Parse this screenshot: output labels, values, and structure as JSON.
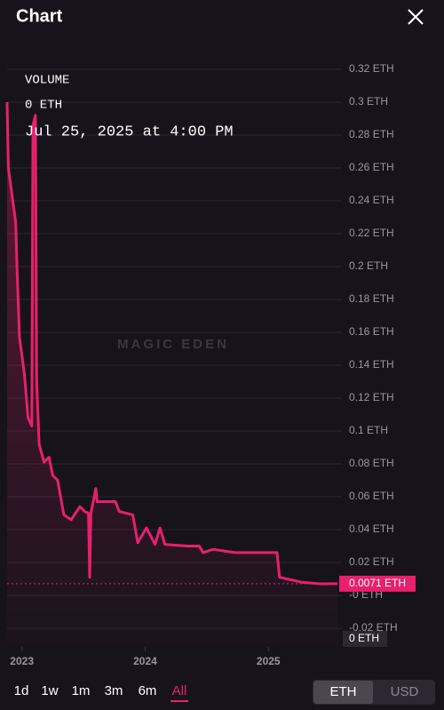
{
  "header": {
    "title": "Chart"
  },
  "info": {
    "label": "VOLUME",
    "value": "0 ETH",
    "date": "Jul 25, 2025 at 4:00 PM"
  },
  "watermark": "MAGIC EDEN",
  "chart_data": {
    "type": "line",
    "color": "#e8206e",
    "x": [
      2022.88,
      2022.89,
      2022.93,
      2022.95,
      2022.96,
      2022.98,
      2023.0,
      2023.02,
      2023.05,
      2023.08,
      2023.09,
      2023.11,
      2023.12,
      2023.14,
      2023.18,
      2023.22,
      2023.25,
      2023.29,
      2023.34,
      2023.4,
      2023.47,
      2023.51,
      2023.54,
      2023.55,
      2023.56,
      2023.6,
      2023.61,
      2023.76,
      2023.79,
      2023.9,
      2023.94,
      2024.01,
      2024.08,
      2024.12,
      2024.16,
      2024.34,
      2024.44,
      2024.47,
      2024.55,
      2024.73,
      2024.99,
      2025.07,
      2025.09,
      2025.27,
      2025.42,
      2025.56
    ],
    "values": [
      0.3,
      0.26,
      0.238,
      0.227,
      0.2,
      0.157,
      0.146,
      0.135,
      0.108,
      0.103,
      0.286,
      0.292,
      0.13,
      0.092,
      0.081,
      0.084,
      0.073,
      0.07,
      0.049,
      0.046,
      0.054,
      0.051,
      0.05,
      0.011,
      0.05,
      0.065,
      0.057,
      0.057,
      0.051,
      0.049,
      0.032,
      0.041,
      0.031,
      0.041,
      0.031,
      0.03,
      0.03,
      0.026,
      0.028,
      0.026,
      0.026,
      0.026,
      0.011,
      0.008,
      0.007,
      0.0071
    ],
    "xlim": [
      2022.88,
      2025.56
    ],
    "xticks": [
      2023,
      2024,
      2025
    ],
    "ylim": [
      -0.03,
      0.33
    ],
    "yticks": [
      {
        "value": 0.32,
        "label": "0.32 ETH"
      },
      {
        "value": 0.3,
        "label": "0.3 ETH"
      },
      {
        "value": 0.28,
        "label": "0.28 ETH"
      },
      {
        "value": 0.26,
        "label": "0.26 ETH"
      },
      {
        "value": 0.24,
        "label": "0.24 ETH"
      },
      {
        "value": 0.22,
        "label": "0.22 ETH"
      },
      {
        "value": 0.2,
        "label": "0.2 ETH"
      },
      {
        "value": 0.18,
        "label": "0.18 ETH"
      },
      {
        "value": 0.16,
        "label": "0.16 ETH"
      },
      {
        "value": 0.14,
        "label": "0.14 ETH"
      },
      {
        "value": 0.12,
        "label": "0.12 ETH"
      },
      {
        "value": 0.1,
        "label": "0.1 ETH"
      },
      {
        "value": 0.08,
        "label": "0.08 ETH"
      },
      {
        "value": 0.06,
        "label": "0.06 ETH"
      },
      {
        "value": 0.04,
        "label": "0.04 ETH"
      },
      {
        "value": 0.02,
        "label": "0.02 ETH"
      },
      {
        "value": 0,
        "label": "-0 ETH"
      },
      {
        "value": -0.02,
        "label": "-0.02 ETH"
      }
    ],
    "grid": true,
    "current_price": {
      "value": 0.0071,
      "label": "0.0071 ETH"
    },
    "volume_label": "0 ETH"
  },
  "controls": {
    "ranges": [
      "1d",
      "1w",
      "1m",
      "3m",
      "6m",
      "All"
    ],
    "selected_range": 5,
    "currencies": [
      "ETH",
      "USD"
    ],
    "selected_currency": 0
  }
}
